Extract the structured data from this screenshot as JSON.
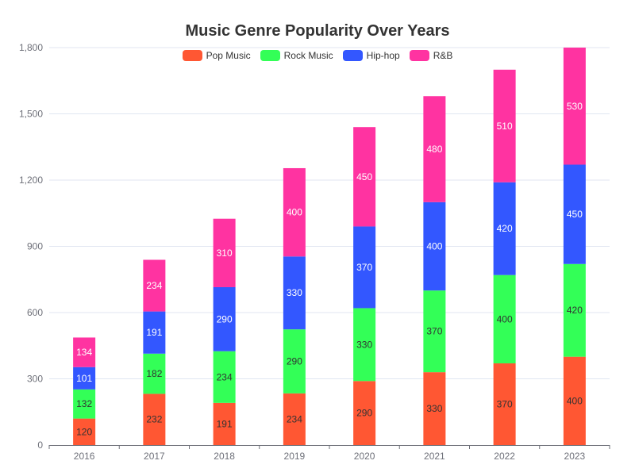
{
  "chart_data": {
    "type": "bar",
    "stacked": true,
    "title": "Music Genre Popularity Over Years",
    "categories": [
      "2016",
      "2017",
      "2018",
      "2019",
      "2020",
      "2021",
      "2022",
      "2023"
    ],
    "series": [
      {
        "name": "Pop Music",
        "color": "#ff5733",
        "label_color": "#333333",
        "values": [
          120,
          232,
          191,
          234,
          290,
          330,
          370,
          400
        ]
      },
      {
        "name": "Rock Music",
        "color": "#33ff57",
        "label_color": "#333333",
        "values": [
          132,
          182,
          234,
          290,
          330,
          370,
          400,
          420
        ]
      },
      {
        "name": "Hip-hop",
        "color": "#3357ff",
        "label_color": "#ffffff",
        "values": [
          101,
          191,
          290,
          330,
          370,
          400,
          420,
          450
        ]
      },
      {
        "name": "R&B",
        "color": "#ff33a1",
        "label_color": "#ffffff",
        "values": [
          134,
          234,
          310,
          400,
          450,
          480,
          510,
          530
        ]
      }
    ],
    "ylim": [
      0,
      1800
    ],
    "yticks": [
      0,
      300,
      600,
      900,
      1200,
      1500,
      1800
    ],
    "ytick_labels": [
      "0",
      "300",
      "600",
      "900",
      "1,200",
      "1,500",
      "1,800"
    ],
    "grid": true,
    "legend_position": "top-center",
    "xlabel": "",
    "ylabel": ""
  }
}
